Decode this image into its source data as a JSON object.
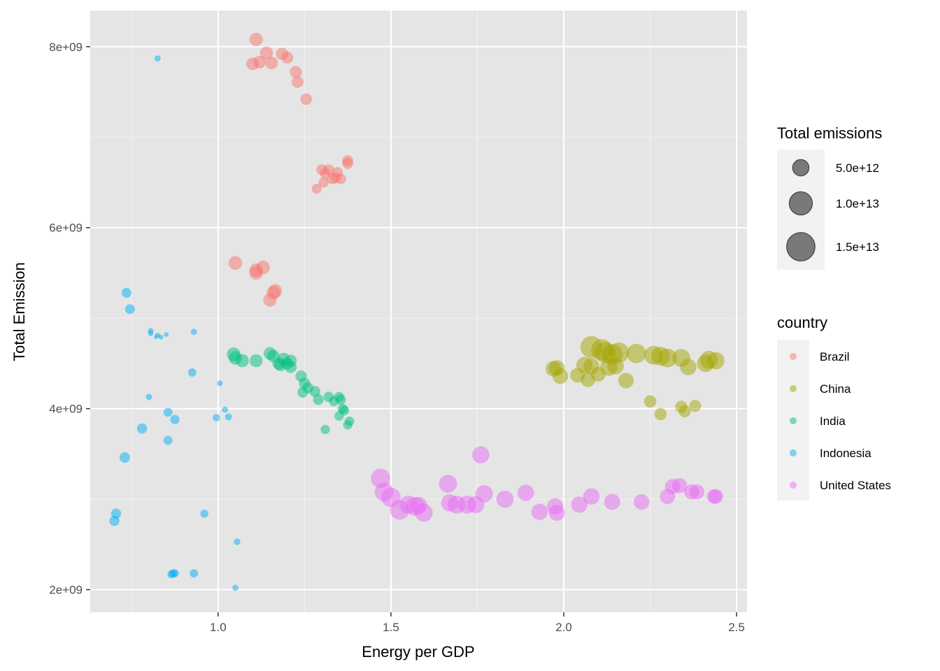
{
  "chart_data": {
    "type": "scatter",
    "xlabel": "Energy per GDP",
    "ylabel": "Total Emission",
    "xlim": [
      0.63,
      2.53
    ],
    "ylim": [
      1750000000,
      8400000000
    ],
    "x_ticks": [
      1.0,
      1.5,
      2.0,
      2.5
    ],
    "x_tick_labels": [
      "1.0",
      "1.5",
      "2.0",
      "2.5"
    ],
    "y_ticks": [
      2000000000,
      4000000000,
      6000000000,
      8000000000
    ],
    "y_tick_labels": [
      "2e+09",
      "4e+09",
      "6e+09",
      "8e+09"
    ],
    "grid": true,
    "panel_background": "#e5e5e5",
    "point_alpha": 0.5,
    "size_legend": {
      "title": "Total emissions",
      "entries": [
        {
          "label": "5.0e+12",
          "value": 5000000000000
        },
        {
          "label": "1.0e+13",
          "value": 10000000000000
        },
        {
          "label": "1.5e+13",
          "value": 15000000000000
        }
      ]
    },
    "color_legend": {
      "title": "country",
      "entries": [
        {
          "label": "Brazil",
          "color": "#F8766D"
        },
        {
          "label": "China",
          "color": "#A3A500"
        },
        {
          "label": "India",
          "color": "#00BF7D"
        },
        {
          "label": "Indonesia",
          "color": "#00B0F6"
        },
        {
          "label": "United States",
          "color": "#E76BF3"
        }
      ]
    },
    "series": [
      {
        "name": "Brazil",
        "color": "#F8766D",
        "points": [
          [
            1.11,
            8080000000,
            3.3
          ],
          [
            1.14,
            7930000000,
            3.2
          ],
          [
            1.12,
            7830000000,
            3.0
          ],
          [
            1.1,
            7810000000,
            3.0
          ],
          [
            1.155,
            7820000000,
            2.9
          ],
          [
            1.185,
            7920000000,
            2.8
          ],
          [
            1.2,
            7880000000,
            2.7
          ],
          [
            1.225,
            7720000000,
            2.7
          ],
          [
            1.23,
            7610000000,
            2.6
          ],
          [
            1.255,
            7420000000,
            2.5
          ],
          [
            1.375,
            6740000000,
            2.2
          ],
          [
            1.375,
            6710000000,
            2.2
          ],
          [
            1.3,
            6640000000,
            2.2
          ],
          [
            1.32,
            6640000000,
            2.2
          ],
          [
            1.345,
            6610000000,
            2.2
          ],
          [
            1.31,
            6600000000,
            2.2
          ],
          [
            1.33,
            6540000000,
            2.2
          ],
          [
            1.34,
            6550000000,
            2.1
          ],
          [
            1.355,
            6540000000,
            2.0
          ],
          [
            1.305,
            6500000000,
            1.9
          ],
          [
            1.285,
            6430000000,
            1.8
          ],
          [
            1.05,
            5610000000,
            3.5
          ],
          [
            1.13,
            5560000000,
            3.5
          ],
          [
            1.11,
            5530000000,
            3.4
          ],
          [
            1.11,
            5500000000,
            3.4
          ],
          [
            1.165,
            5300000000,
            3.5
          ],
          [
            1.16,
            5280000000,
            3.4
          ],
          [
            1.15,
            5200000000,
            3.3
          ]
        ]
      },
      {
        "name": "China",
        "color": "#A3A500",
        "points": [
          [
            2.08,
            4680000000,
            9.0
          ],
          [
            2.11,
            4650000000,
            8.5
          ],
          [
            2.12,
            4620000000,
            8.0
          ],
          [
            2.14,
            4600000000,
            8.0
          ],
          [
            2.16,
            4620000000,
            7.5
          ],
          [
            2.21,
            4610000000,
            7.0
          ],
          [
            2.26,
            4590000000,
            6.5
          ],
          [
            2.28,
            4580000000,
            6.5
          ],
          [
            2.3,
            4560000000,
            6.5
          ],
          [
            2.34,
            4560000000,
            6.0
          ],
          [
            2.42,
            4540000000,
            6.0
          ],
          [
            2.44,
            4530000000,
            5.5
          ],
          [
            2.41,
            4500000000,
            5.5
          ],
          [
            2.13,
            4460000000,
            5.5
          ],
          [
            2.15,
            4470000000,
            5.0
          ],
          [
            2.06,
            4480000000,
            5.0
          ],
          [
            2.08,
            4470000000,
            4.8
          ],
          [
            2.36,
            4460000000,
            5.0
          ],
          [
            1.97,
            4440000000,
            4.5
          ],
          [
            1.98,
            4450000000,
            4.5
          ],
          [
            1.99,
            4360000000,
            4.5
          ],
          [
            2.04,
            4370000000,
            4.0
          ],
          [
            2.07,
            4320000000,
            4.0
          ],
          [
            2.1,
            4380000000,
            4.0
          ],
          [
            2.18,
            4310000000,
            4.5
          ],
          [
            2.25,
            4080000000,
            2.8
          ],
          [
            2.34,
            4020000000,
            2.8
          ],
          [
            2.38,
            4030000000,
            2.7
          ],
          [
            2.35,
            3970000000,
            2.7
          ],
          [
            2.28,
            3940000000,
            2.8
          ]
        ]
      },
      {
        "name": "India",
        "color": "#00BF7D",
        "points": [
          [
            1.045,
            4600000000,
            3.5
          ],
          [
            1.05,
            4560000000,
            3.3
          ],
          [
            1.07,
            4530000000,
            3.2
          ],
          [
            1.11,
            4530000000,
            3.1
          ],
          [
            1.15,
            4610000000,
            3.0
          ],
          [
            1.16,
            4580000000,
            2.9
          ],
          [
            1.19,
            4550000000,
            2.8
          ],
          [
            1.21,
            4530000000,
            2.7
          ],
          [
            1.175,
            4500000000,
            2.8
          ],
          [
            1.18,
            4480000000,
            2.7
          ],
          [
            1.2,
            4500000000,
            2.7
          ],
          [
            1.21,
            4460000000,
            2.6
          ],
          [
            1.24,
            4360000000,
            2.4
          ],
          [
            1.25,
            4280000000,
            2.3
          ],
          [
            1.28,
            4190000000,
            2.2
          ],
          [
            1.26,
            4230000000,
            2.2
          ],
          [
            1.245,
            4180000000,
            2.1
          ],
          [
            1.29,
            4100000000,
            2.1
          ],
          [
            1.32,
            4130000000,
            2.0
          ],
          [
            1.35,
            4130000000,
            1.9
          ],
          [
            1.355,
            4100000000,
            1.9
          ],
          [
            1.335,
            4080000000,
            1.8
          ],
          [
            1.36,
            4000000000,
            1.8
          ],
          [
            1.365,
            3980000000,
            1.8
          ],
          [
            1.35,
            3920000000,
            1.7
          ],
          [
            1.38,
            3860000000,
            1.7
          ],
          [
            1.375,
            3820000000,
            1.6
          ],
          [
            1.31,
            3770000000,
            1.6
          ]
        ]
      },
      {
        "name": "Indonesia",
        "color": "#00B0F6",
        "points": [
          [
            0.825,
            7870000000,
            0.7
          ],
          [
            0.735,
            5280000000,
            1.8
          ],
          [
            0.745,
            5100000000,
            1.8
          ],
          [
            0.805,
            4860000000,
            0.6
          ],
          [
            0.805,
            4830000000,
            0.5
          ],
          [
            0.825,
            4810000000,
            0.5
          ],
          [
            0.835,
            4790000000,
            0.4
          ],
          [
            0.85,
            4820000000,
            0.4
          ],
          [
            0.82,
            4790000000,
            0.3
          ],
          [
            0.93,
            4850000000,
            0.7
          ],
          [
            0.925,
            4400000000,
            1.3
          ],
          [
            1.005,
            4280000000,
            0.6
          ],
          [
            0.8,
            4130000000,
            0.7
          ],
          [
            1.02,
            3990000000,
            0.7
          ],
          [
            0.855,
            3960000000,
            1.5
          ],
          [
            1.03,
            3910000000,
            0.9
          ],
          [
            0.995,
            3900000000,
            1.0
          ],
          [
            0.875,
            3880000000,
            1.6
          ],
          [
            0.78,
            3780000000,
            1.9
          ],
          [
            0.855,
            3650000000,
            1.5
          ],
          [
            0.73,
            3460000000,
            2.0
          ],
          [
            0.705,
            2840000000,
            1.9
          ],
          [
            0.7,
            2760000000,
            1.9
          ],
          [
            0.96,
            2840000000,
            1.2
          ],
          [
            1.055,
            2530000000,
            0.8
          ],
          [
            0.87,
            2180000000,
            1.3
          ],
          [
            0.875,
            2180000000,
            1.2
          ],
          [
            0.865,
            2170000000,
            1.2
          ],
          [
            0.93,
            2180000000,
            1.3
          ],
          [
            1.05,
            2020000000,
            0.7
          ]
        ]
      },
      {
        "name": "United States",
        "color": "#E76BF3",
        "points": [
          [
            1.76,
            3490000000,
            5.5
          ],
          [
            1.47,
            3230000000,
            7.0
          ],
          [
            1.665,
            3170000000,
            6.0
          ],
          [
            1.48,
            3080000000,
            6.5
          ],
          [
            1.5,
            3020000000,
            7.0
          ],
          [
            1.525,
            2880000000,
            7.0
          ],
          [
            1.57,
            2920000000,
            6.5
          ],
          [
            1.595,
            2850000000,
            6.0
          ],
          [
            1.55,
            2940000000,
            6.0
          ],
          [
            1.58,
            2930000000,
            5.5
          ],
          [
            1.69,
            2940000000,
            6.0
          ],
          [
            1.72,
            2940000000,
            6.0
          ],
          [
            1.745,
            2940000000,
            5.5
          ],
          [
            1.67,
            2960000000,
            5.5
          ],
          [
            1.77,
            3060000000,
            5.5
          ],
          [
            1.83,
            3000000000,
            5.5
          ],
          [
            1.89,
            3070000000,
            5.0
          ],
          [
            1.93,
            2860000000,
            5.0
          ],
          [
            1.975,
            2920000000,
            5.0
          ],
          [
            1.98,
            2850000000,
            4.8
          ],
          [
            2.045,
            2940000000,
            5.0
          ],
          [
            2.08,
            3030000000,
            5.0
          ],
          [
            2.14,
            2970000000,
            4.8
          ],
          [
            2.225,
            2970000000,
            4.5
          ],
          [
            2.3,
            3030000000,
            4.3
          ],
          [
            2.315,
            3140000000,
            4.3
          ],
          [
            2.335,
            3150000000,
            4.2
          ],
          [
            2.37,
            3080000000,
            4.2
          ],
          [
            2.385,
            3080000000,
            4.2
          ],
          [
            2.435,
            3030000000,
            4.0
          ],
          [
            2.44,
            3030000000,
            4.0
          ]
        ]
      }
    ]
  }
}
